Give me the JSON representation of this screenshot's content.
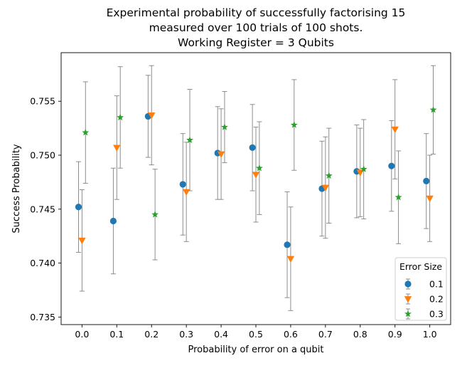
{
  "chart_data": {
    "type": "scatter",
    "title": "Experimental probability of successfully factorising 15\nmeasured over 100 trials of 100 shots.\nWorking Register = 3 Qubits",
    "xlabel": "Probability of error on a qubit",
    "ylabel": "Success Probability",
    "x_ticks": [
      "0.0",
      "0.1",
      "0.2",
      "0.3",
      "0.4",
      "0.5",
      "0.6",
      "0.7",
      "0.8",
      "0.9",
      "1.0"
    ],
    "y_ticks": [
      "0.735",
      "0.740",
      "0.745",
      "0.750",
      "0.755"
    ],
    "xlim": [
      -0.06,
      1.06
    ],
    "ylim": [
      0.7343,
      0.7595
    ],
    "grid": false,
    "legend": {
      "title": "Error Size",
      "placement": "lower-right"
    },
    "series": [
      {
        "name": "0.1",
        "marker": "circle",
        "color": "#1f77b4",
        "x_offset": -0.01,
        "x": [
          0.0,
          0.1,
          0.2,
          0.3,
          0.4,
          0.5,
          0.6,
          0.7,
          0.8,
          0.9,
          1.0
        ],
        "y": [
          0.7452,
          0.7439,
          0.7536,
          0.7473,
          0.7502,
          0.7507,
          0.7417,
          0.7469,
          0.7485,
          0.749,
          0.7476
        ],
        "err": [
          0.0042,
          0.0049,
          0.0038,
          0.0047,
          0.0043,
          0.004,
          0.0049,
          0.0044,
          0.0043,
          0.0042,
          0.0044
        ]
      },
      {
        "name": "0.2",
        "marker": "triangle-down",
        "color": "#ff7f0e",
        "x_offset": 0.0,
        "x": [
          0.0,
          0.1,
          0.2,
          0.3,
          0.4,
          0.5,
          0.6,
          0.7,
          0.8,
          0.9,
          1.0
        ],
        "y": [
          0.7421,
          0.7507,
          0.7537,
          0.7466,
          0.7501,
          0.7482,
          0.7404,
          0.747,
          0.7484,
          0.7524,
          0.746
        ],
        "err": [
          0.0047,
          0.0048,
          0.0046,
          0.0046,
          0.0042,
          0.0044,
          0.0048,
          0.0047,
          0.0041,
          0.0046,
          0.004
        ]
      },
      {
        "name": "0.3",
        "marker": "star",
        "color": "#2ca02c",
        "x_offset": 0.01,
        "x": [
          0.0,
          0.1,
          0.2,
          0.3,
          0.4,
          0.5,
          0.6,
          0.7,
          0.8,
          0.9,
          1.0
        ],
        "y": [
          0.7521,
          0.7535,
          0.7445,
          0.7514,
          0.7526,
          0.7488,
          0.7528,
          0.7481,
          0.7487,
          0.7461,
          0.7542
        ],
        "err": [
          0.0047,
          0.0047,
          0.0042,
          0.0047,
          0.0033,
          0.0043,
          0.0042,
          0.0044,
          0.0046,
          0.0043,
          0.0041
        ]
      }
    ]
  }
}
